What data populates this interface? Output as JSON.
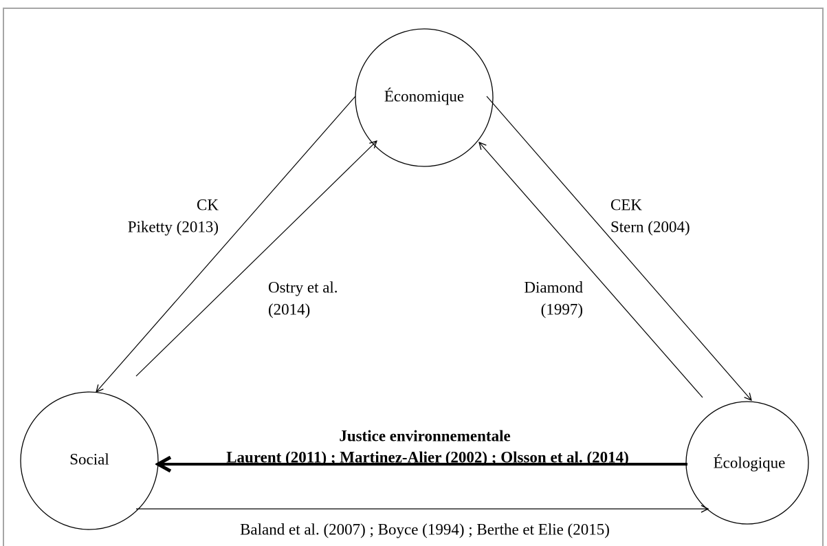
{
  "nodes": [
    {
      "label": "Économique"
    },
    {
      "label": "Social"
    },
    {
      "label": "Écologique"
    }
  ],
  "edges": [
    {
      "label": [
        "CK",
        "Piketty (2013)"
      ]
    },
    {
      "label": [
        "Ostry et al.",
        "(2014)"
      ]
    },
    {
      "label": [
        "CEK",
        "Stern (2004)"
      ]
    },
    {
      "label": [
        "Diamond",
        "(1997)"
      ]
    },
    {
      "label": [
        "Justice environnementale",
        "Laurent (2011) ; Martinez-Alier (2002) ; Olsson et al. (2014)"
      ]
    },
    {
      "label": [
        "Baland et al. (2007) ; Boyce (1994) ; Berthe et Elie (2015)"
      ]
    }
  ]
}
